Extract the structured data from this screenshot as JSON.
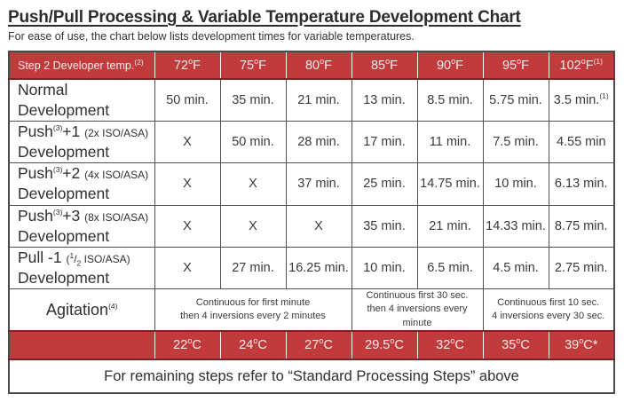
{
  "page": {
    "title": "Push/Pull Processing & Variable Temperature Development Chart",
    "subtitle": "For ease of use, the chart below lists development times for variable temperatures."
  },
  "colors": {
    "accent_red": "#c13a3c",
    "maroon_border": "#7d2123",
    "table_border": "#4a4a4a",
    "text": "#3a3a3a"
  },
  "table": {
    "header": {
      "label_html": "Step 2 Developer temp.<sup>(2)</sup>",
      "temps_f_html": [
        "72<span class='deg'>o</span>F",
        "75<span class='deg'>o</span>F",
        "80<span class='deg'>o</span>F",
        "85<span class='deg'>o</span>F",
        "90<span class='deg'>o</span>F",
        "95<span class='deg'>o</span>F",
        "102<span class='deg'>o</span>F<sup>(1)</sup>"
      ]
    },
    "rows": [
      {
        "name": "normal-development",
        "label_html": "Normal<br>Development",
        "cells_html": [
          "50 min.",
          "35 min.",
          "21 min.",
          "13 min.",
          "8.5 min.",
          "5.75 min.",
          "3.5 min.<sup>(1)</sup>"
        ]
      },
      {
        "name": "push-plus-1-development",
        "label_html": "Push<sup>(3)</sup>+1 <span class='paren'>(2x ISO/ASA)</span><br>Development",
        "cells_html": [
          "X",
          "50 min.",
          "28 min.",
          "17 min.",
          "11 min.",
          "7.5 min.",
          "4.55 min"
        ]
      },
      {
        "name": "push-plus-2-development",
        "label_html": "Push<sup>(3)</sup>+2 <span class='paren'>(4x ISO/ASA)</span><br>Development",
        "cells_html": [
          "X",
          "X",
          "37 min.",
          "25 min.",
          "14.75 min.",
          "10 min.",
          "6.13 min."
        ]
      },
      {
        "name": "push-plus-3-development",
        "label_html": "Push<sup>(3)</sup>+3 <span class='paren'>(8x ISO/ASA)</span><br>Development",
        "cells_html": [
          "X",
          "X",
          "X",
          "35 min.",
          "21 min.",
          "14.33 min.",
          "8.75 min."
        ]
      },
      {
        "name": "pull-minus-1-development",
        "label_html": "Pull -1 <span class='paren'>(<sup>1</sup>/<sub>2</sub> ISO/ASA)</span><br>Development",
        "cells_html": [
          "X",
          "27 min.",
          "16.25 min.",
          "10 min.",
          "6.5 min.",
          "4.5 min.",
          "2.75 min."
        ]
      }
    ],
    "agitation": {
      "label_html": "Agitation<sup>(4)</sup>",
      "groups": [
        {
          "span": 3,
          "text_html": "Continuous for first minute<br>then 4 inversions every 2 minutes"
        },
        {
          "span": 2,
          "text_html": "Continuous first 30 sec.<br>then 4 inversions every minute"
        },
        {
          "span": 2,
          "text_html": "Continuous first 10 sec.<br>4 inversions every 30 sec."
        }
      ]
    },
    "celsius_html": [
      "22<span class='deg'>o</span>C",
      "24<span class='deg'>o</span>C",
      "27<span class='deg'>o</span>C",
      "29.5<span class='deg'>o</span>C",
      "32<span class='deg'>o</span>C",
      "35<span class='deg'>o</span>C",
      "39<span class='deg'>o</span>C*"
    ],
    "footer": "For remaining steps refer to “Standard Processing Steps” above"
  }
}
